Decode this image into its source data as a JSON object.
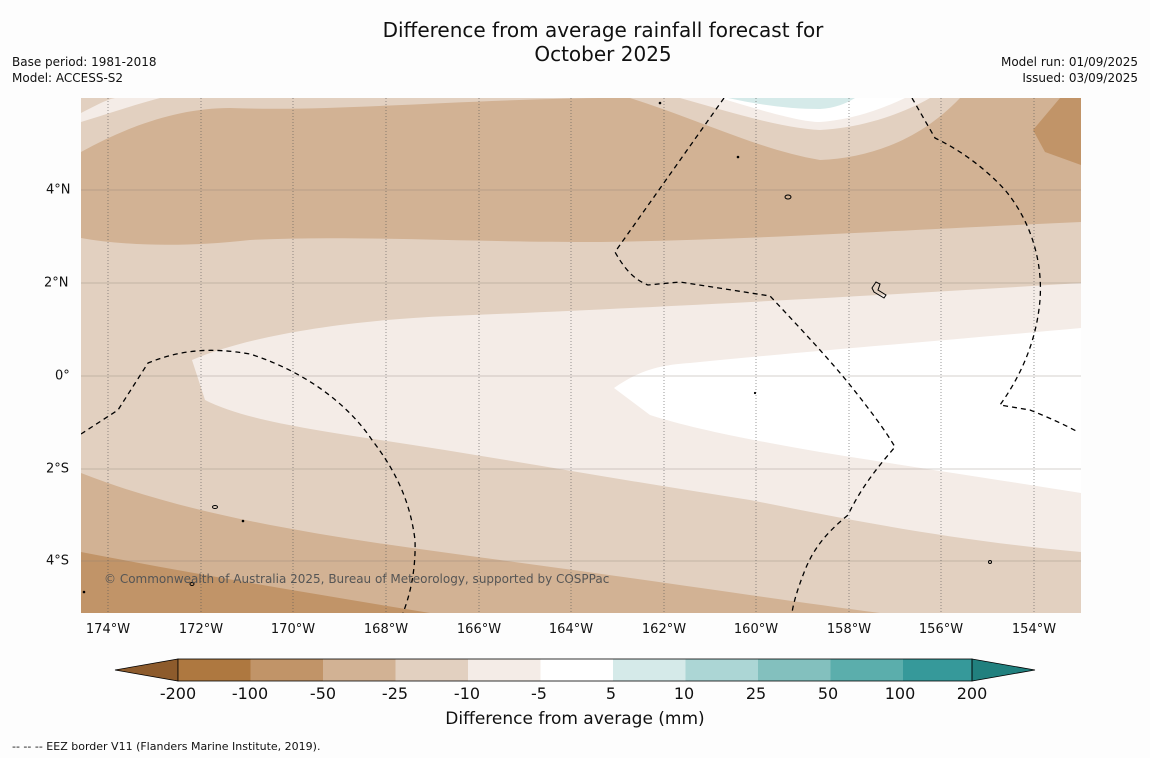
{
  "title": {
    "line1": "Difference from average rainfall forecast for",
    "line2": "October 2025"
  },
  "meta_left": {
    "base_period": "Base period: 1981-2018",
    "model": "Model: ACCESS-S2"
  },
  "meta_right": {
    "model_run": "Model run: 01/09/2025",
    "issued": "Issued: 03/09/2025"
  },
  "map": {
    "longitude_labels": [
      "174°W",
      "172°W",
      "170°W",
      "168°W",
      "166°W",
      "164°W",
      "162°W",
      "160°W",
      "158°W",
      "156°W",
      "154°W"
    ],
    "latitude_labels": [
      "4°N",
      "2°N",
      "0°",
      "2°S",
      "4°S"
    ],
    "copyright": "© Commonwealth of Australia 2025, Bureau of Meteorology, supported by COSPPac"
  },
  "colorbar": {
    "title": "Difference from average (mm)",
    "ticks": [
      "-200",
      "-100",
      "-50",
      "-25",
      "-10",
      "-5",
      "5",
      "10",
      "25",
      "50",
      "100",
      "200"
    ],
    "colors": {
      "below_-200": "#8d5b2c",
      "-200_-100": "#ae7840",
      "-100_-50": "#c19468",
      "-50_-25": "#d2b294",
      "-25_-10": "#e2d0c0",
      "-10_-5": "#f4ece7",
      "-5_5": "#ffffff",
      "5_10": "#d5eae9",
      "10_25": "#acd6d5",
      "25_50": "#83c0be",
      "50_100": "#5baeac",
      "100_200": "#36999a",
      "above_200": "#21807e"
    }
  },
  "footer": {
    "legend": "--  --  -- EEZ border V11 (Flanders Marine Institute, 2019)."
  }
}
